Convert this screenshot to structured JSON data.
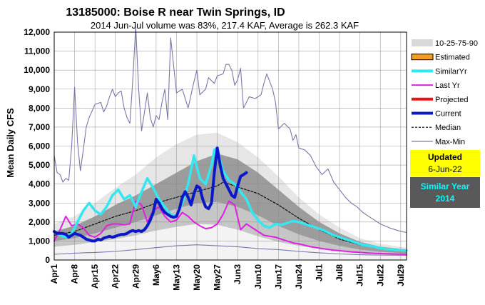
{
  "header": {
    "title": "13185000: Boise R near Twin Springs, ID",
    "subtitle": "2014 Jun-Jul volume was 83%, 217.4 KAF, Average is 262.3 KAF"
  },
  "info_box": {
    "updated_label": "Updated",
    "updated_date": "6-Jun-22",
    "similar_label": "Similar Year",
    "similar_year": "2014"
  },
  "chart_data": {
    "type": "line",
    "ylabel": "Mean Daily CFS",
    "ylim": [
      0,
      12000
    ],
    "yticks": [
      0,
      1000,
      2000,
      3000,
      4000,
      5000,
      6000,
      7000,
      8000,
      9000,
      10000,
      11000,
      12000
    ],
    "ytick_labels": [
      "0",
      "1,000",
      "2,000",
      "3,000",
      "4,000",
      "5,000",
      "6,000",
      "7,000",
      "8,000",
      "9,000",
      "10,000",
      "11,000",
      "12,000"
    ],
    "x_start": "Apr1",
    "x_end_day": 121,
    "xticks": [
      {
        "label": "Apr1",
        "day": 0
      },
      {
        "label": "Apr8",
        "day": 7
      },
      {
        "label": "Apr15",
        "day": 14
      },
      {
        "label": "Apr22",
        "day": 21
      },
      {
        "label": "Apr29",
        "day": 28
      },
      {
        "label": "May6",
        "day": 35
      },
      {
        "label": "May13",
        "day": 42
      },
      {
        "label": "May20",
        "day": 49
      },
      {
        "label": "May27",
        "day": 56
      },
      {
        "label": "Jun3",
        "day": 63
      },
      {
        "label": "Jun10",
        "day": 70
      },
      {
        "label": "Jun17",
        "day": 77
      },
      {
        "label": "Jun24",
        "day": 84
      },
      {
        "label": "Jul1",
        "day": 91
      },
      {
        "label": "Jul8",
        "day": 98
      },
      {
        "label": "Jul15",
        "day": 105
      },
      {
        "label": "Jul22",
        "day": 112
      },
      {
        "label": "Jul29",
        "day": 119
      }
    ],
    "grid": true,
    "legend_position": "right",
    "legend": [
      {
        "label": "10-25-75-90",
        "style": "band"
      },
      {
        "label": "Estimated",
        "style": "estimated"
      },
      {
        "label": "SimilarYr",
        "style": "line",
        "color": "#33e6f0"
      },
      {
        "label": "Last Yr",
        "style": "line",
        "color": "#e020e0"
      },
      {
        "label": "Projected",
        "style": "line",
        "color": "#ee1111"
      },
      {
        "label": "Current",
        "style": "line",
        "color": "#0a18c8"
      },
      {
        "label": "Median",
        "style": "dashed",
        "color": "#000000"
      },
      {
        "label": "Max-Min",
        "style": "thin",
        "color": "#7777aa"
      }
    ],
    "colors": {
      "band_outer": "#e6e6e6",
      "band_mid": "#c6c6c6",
      "band_inner": "#9c9c9c",
      "below_p10": "#f3f3f3",
      "similar": "#33e6f0",
      "lastyr": "#e020e0",
      "current": "#0a18c8",
      "projected": "#ee1111",
      "median": "#000000",
      "maxmin": "#7777aa",
      "estimated_fill": "#f0a020",
      "updated_bg": "#ffff00",
      "similar_bg": "#595959",
      "similar_year_text": "#00ffff"
    },
    "bands": {
      "days": [
        0,
        7,
        14,
        21,
        28,
        35,
        42,
        49,
        56,
        63,
        70,
        77,
        84,
        91,
        98,
        105,
        112,
        121
      ],
      "p10": [
        700,
        800,
        950,
        1100,
        1300,
        1550,
        1750,
        1900,
        1850,
        1600,
        1250,
        950,
        750,
        600,
        480,
        380,
        320,
        270
      ],
      "p25": [
        1000,
        1150,
        1400,
        1700,
        2000,
        2350,
        2700,
        3000,
        3050,
        2800,
        2350,
        1800,
        1350,
        1000,
        750,
        550,
        430,
        350
      ],
      "p75": [
        1500,
        1800,
        2300,
        2900,
        3400,
        4000,
        4600,
        5200,
        5600,
        5300,
        4600,
        3700,
        2800,
        2000,
        1400,
        950,
        700,
        550
      ],
      "p90": [
        1900,
        2300,
        3000,
        3800,
        4500,
        5400,
        6100,
        6600,
        6700,
        6200,
        5400,
        4400,
        3300,
        2400,
        1700,
        1150,
        850,
        650
      ]
    },
    "series": [
      {
        "name": "Max-Min",
        "key": "max",
        "style": "thin",
        "days": [
          0,
          1,
          2,
          3,
          4,
          5,
          6,
          7,
          8,
          9,
          10,
          11,
          12,
          14,
          16,
          17,
          18,
          19,
          20,
          21,
          22,
          23,
          24,
          25,
          26,
          27,
          28,
          29,
          30,
          31,
          32,
          33,
          34,
          35,
          36,
          37,
          38,
          39,
          40,
          42,
          44,
          46,
          48,
          49,
          50,
          52,
          53,
          55,
          56,
          58,
          59,
          60,
          61,
          62,
          63,
          64,
          65,
          67,
          69,
          71,
          72,
          73,
          74,
          75,
          76,
          77,
          79,
          81,
          82,
          83,
          84,
          86,
          88,
          90,
          92,
          94,
          96,
          98,
          100,
          102,
          104,
          106,
          108,
          110,
          112,
          115,
          118,
          121
        ],
        "values": [
          5500,
          4600,
          4500,
          4100,
          4300,
          4200,
          6000,
          9100,
          6200,
          4700,
          5800,
          7000,
          7500,
          8200,
          8300,
          7800,
          8100,
          8600,
          9000,
          8600,
          8800,
          8900,
          8000,
          7500,
          7200,
          9500,
          12300,
          9000,
          6800,
          7800,
          8800,
          7500,
          7000,
          7600,
          7400,
          8300,
          9000,
          7400,
          11700,
          8800,
          9000,
          8000,
          9400,
          10000,
          8700,
          9000,
          9600,
          9300,
          9700,
          9800,
          10300,
          10300,
          10000,
          9200,
          9500,
          10100,
          8000,
          8600,
          8500,
          8700,
          9300,
          9800,
          9400,
          9000,
          8300,
          6900,
          7200,
          6900,
          6300,
          6600,
          5900,
          5800,
          5500,
          4900,
          4500,
          4800,
          4100,
          3700,
          3300,
          3000,
          2800,
          2500,
          2300,
          2100,
          1900,
          1700,
          1550,
          1450
        ]
      },
      {
        "name": "Max-Min",
        "key": "min",
        "style": "thin",
        "days": [
          0,
          7,
          14,
          21,
          28,
          35,
          42,
          49,
          56,
          63,
          70,
          77,
          84,
          91,
          98,
          105,
          112,
          121
        ],
        "values": [
          300,
          360,
          400,
          450,
          550,
          650,
          750,
          800,
          750,
          700,
          600,
          550,
          450,
          380,
          320,
          280,
          260,
          250
        ]
      },
      {
        "name": "Median",
        "key": "median",
        "style": "dashed",
        "days": [
          0,
          7,
          14,
          21,
          28,
          35,
          42,
          49,
          56,
          58,
          63,
          70,
          77,
          84,
          91,
          98,
          105,
          112,
          121
        ],
        "values": [
          1300,
          1500,
          1900,
          2300,
          2600,
          3000,
          3300,
          3600,
          3900,
          4100,
          3850,
          3500,
          2900,
          2200,
          1600,
          1100,
          800,
          600,
          450
        ]
      },
      {
        "name": "SimilarYr",
        "key": "similar",
        "style": "line",
        "days": [
          0,
          2,
          4,
          6,
          8,
          10,
          12,
          14,
          16,
          18,
          20,
          22,
          24,
          26,
          28,
          30,
          32,
          34,
          36,
          38,
          40,
          42,
          44,
          46,
          48,
          50,
          52,
          54,
          55,
          56,
          57,
          58,
          60,
          62,
          64,
          66,
          68,
          70,
          72,
          74,
          76,
          78,
          80,
          82,
          84,
          86,
          88,
          90,
          92,
          94,
          96,
          98,
          100,
          102,
          104,
          106,
          108,
          110,
          112,
          114,
          116,
          118,
          121
        ],
        "values": [
          1500,
          1300,
          1200,
          1400,
          2000,
          2600,
          3000,
          2600,
          2400,
          2800,
          3400,
          3700,
          3200,
          3400,
          2800,
          3600,
          4300,
          3800,
          3200,
          2800,
          2400,
          2300,
          3000,
          4000,
          5500,
          4300,
          4000,
          5000,
          5800,
          5900,
          5200,
          4700,
          4200,
          4000,
          3600,
          3200,
          2500,
          2100,
          1800,
          1700,
          1900,
          1850,
          1950,
          2050,
          2000,
          1900,
          1800,
          1700,
          1600,
          1450,
          1300,
          1200,
          1100,
          1000,
          900,
          800,
          750,
          700,
          620,
          580,
          550,
          520,
          500
        ]
      },
      {
        "name": "Last Yr",
        "key": "lastyr",
        "style": "line",
        "days": [
          0,
          2,
          4,
          6,
          8,
          10,
          12,
          14,
          16,
          18,
          20,
          22,
          24,
          26,
          28,
          30,
          32,
          34,
          36,
          38,
          40,
          42,
          44,
          46,
          48,
          50,
          52,
          54,
          56,
          58,
          60,
          62,
          64,
          66,
          68,
          70,
          72,
          74,
          76,
          78,
          80,
          82,
          84,
          86,
          88,
          90,
          92,
          94,
          96,
          98,
          100,
          102,
          104,
          106,
          108,
          110,
          112,
          114,
          116,
          118,
          121
        ],
        "values": [
          1000,
          1600,
          2300,
          1800,
          1900,
          1700,
          1300,
          1200,
          1400,
          1800,
          1900,
          1900,
          1850,
          1900,
          3100,
          2900,
          2000,
          2600,
          2800,
          2300,
          2000,
          2100,
          2500,
          2300,
          2000,
          1800,
          1650,
          1700,
          1900,
          2400,
          3100,
          2900,
          1600,
          1900,
          1700,
          1500,
          1300,
          1250,
          1200,
          1100,
          1000,
          900,
          850,
          780,
          700,
          650,
          600,
          560,
          520,
          490,
          460,
          430,
          410,
          390,
          370,
          350,
          340,
          330,
          320,
          310,
          300
        ]
      },
      {
        "name": "Current",
        "key": "current",
        "style": "line",
        "days": [
          0,
          1,
          2,
          3,
          4,
          5,
          6,
          7,
          8,
          9,
          10,
          11,
          12,
          13,
          14,
          15,
          16,
          17,
          18,
          19,
          20,
          21,
          22,
          23,
          24,
          25,
          26,
          27,
          28,
          29,
          30,
          31,
          32,
          33,
          34,
          35,
          36,
          37,
          38,
          39,
          40,
          41,
          42,
          43,
          44,
          45,
          46,
          47,
          48,
          49,
          50,
          51,
          52,
          53,
          54,
          55,
          56,
          57,
          58,
          59,
          60,
          61,
          62,
          63,
          64,
          65,
          66
        ],
        "values": [
          1500,
          1400,
          1400,
          1400,
          1350,
          1200,
          1300,
          1400,
          1350,
          1300,
          1200,
          1100,
          1050,
          1000,
          1000,
          1100,
          1050,
          1150,
          1200,
          1250,
          1200,
          1250,
          1300,
          1350,
          1350,
          1400,
          1500,
          1550,
          1500,
          1550,
          1500,
          1600,
          1800,
          2100,
          2500,
          3200,
          3000,
          2700,
          2500,
          2400,
          2300,
          2250,
          2300,
          2700,
          3300,
          3600,
          3300,
          2900,
          3500,
          3900,
          3800,
          3200,
          2800,
          2700,
          3000,
          4600,
          5900,
          5000,
          4300,
          4000,
          3700,
          3400,
          3300,
          3900,
          4400,
          4500,
          4600
        ]
      }
    ]
  }
}
